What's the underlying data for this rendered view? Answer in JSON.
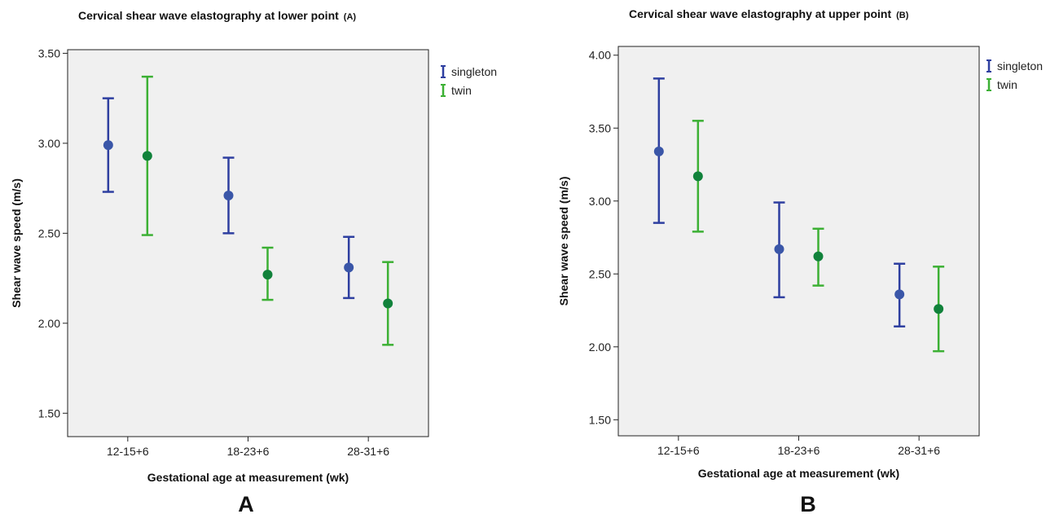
{
  "chart_data": [
    {
      "type": "errorbar",
      "title": "Cervical shear wave elastography at lower point",
      "tag": "(A)",
      "panel_letter": "A",
      "xlabel": "Gestational age at measurement (wk)",
      "ylabel": "Shear wave speed (m/s)",
      "categories": [
        "12-15+6",
        "18-23+6",
        "28-31+6"
      ],
      "ylim": [
        1.37,
        3.52
      ],
      "yticks": [
        1.5,
        2.0,
        2.5,
        3.0,
        3.5
      ],
      "ytick_labels": [
        "1.50",
        "2.00",
        "2.50",
        "3.00",
        "3.50"
      ],
      "grid": false,
      "legend_position": "right",
      "series": [
        {
          "name": "singleton",
          "bar_color": "#2e3fa0",
          "point_color": "#3a56a8",
          "values": [
            2.99,
            2.71,
            2.31
          ],
          "lower": [
            2.73,
            2.5,
            2.14
          ],
          "upper": [
            3.25,
            2.92,
            2.48
          ]
        },
        {
          "name": "twin",
          "bar_color": "#3cb034",
          "point_color": "#11823b",
          "values": [
            2.93,
            2.27,
            2.11
          ],
          "lower": [
            2.49,
            2.13,
            1.88
          ],
          "upper": [
            3.37,
            2.42,
            2.34
          ]
        }
      ]
    },
    {
      "type": "errorbar",
      "title": "Cervical shear wave elastography at upper point",
      "tag": "(B)",
      "panel_letter": "B",
      "xlabel": "Gestational age at measurement (wk)",
      "ylabel": "Shear wave speed (m/s)",
      "categories": [
        "12-15+6",
        "18-23+6",
        "28-31+6"
      ],
      "ylim": [
        1.39,
        4.06
      ],
      "yticks": [
        1.5,
        2.0,
        2.5,
        3.0,
        3.5,
        4.0
      ],
      "ytick_labels": [
        "1.50",
        "2.00",
        "2.50",
        "3.00",
        "3.50",
        "4.00"
      ],
      "grid": false,
      "legend_position": "right",
      "series": [
        {
          "name": "singleton",
          "bar_color": "#2e3fa0",
          "point_color": "#3a56a8",
          "values": [
            3.34,
            2.67,
            2.36
          ],
          "lower": [
            2.85,
            2.34,
            2.14
          ],
          "upper": [
            3.84,
            2.99,
            2.57
          ]
        },
        {
          "name": "twin",
          "bar_color": "#3cb034",
          "point_color": "#11823b",
          "values": [
            3.17,
            2.62,
            2.26
          ],
          "lower": [
            2.79,
            2.42,
            1.97
          ],
          "upper": [
            3.55,
            2.81,
            2.55
          ]
        }
      ]
    }
  ]
}
